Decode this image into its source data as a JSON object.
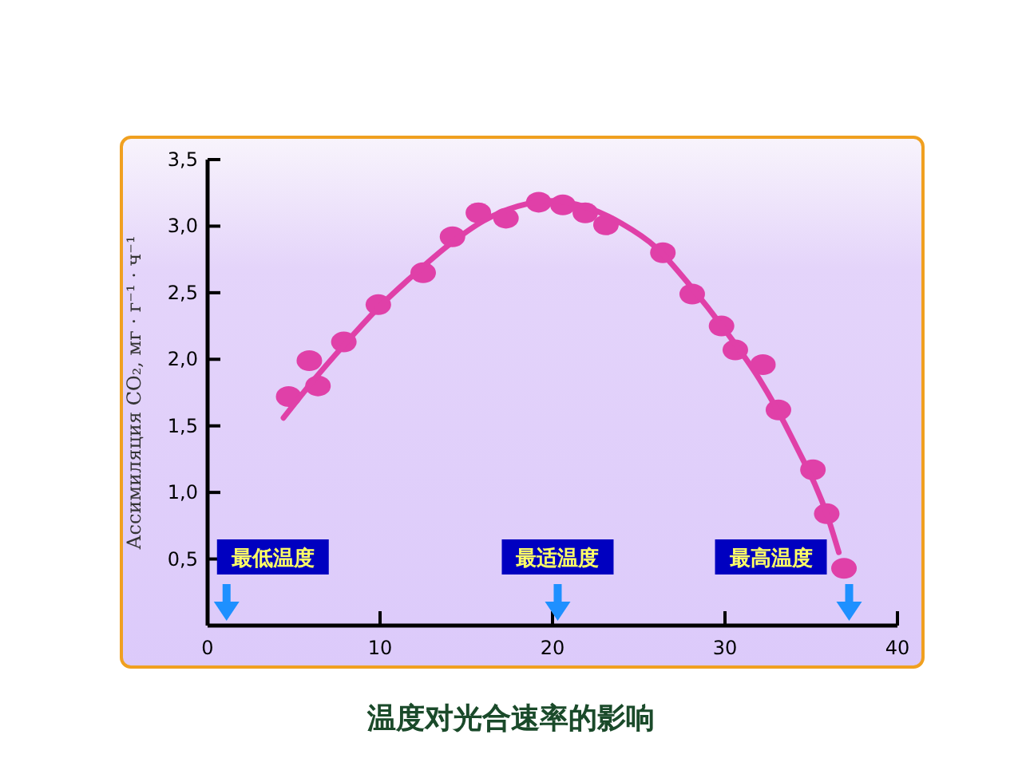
{
  "chart_data": {
    "type": "scatter",
    "title": "温度对光合速率的影响",
    "ylabel": "Ассимиляция CO₂, мг · г⁻¹ · ч⁻¹",
    "xlim": [
      0,
      40
    ],
    "xticks": [
      0,
      10,
      20,
      30,
      40
    ],
    "ylim": [
      0,
      3.5
    ],
    "yticks": [
      {
        "value": 0.5,
        "label": "0,5"
      },
      {
        "value": 1,
        "label": "1,0"
      },
      {
        "value": 1.5,
        "label": "1,5"
      },
      {
        "value": 2,
        "label": "2,0"
      },
      {
        "value": 2.5,
        "label": "2,5"
      },
      {
        "value": 3,
        "label": "3,0"
      },
      {
        "value": 3.5,
        "label": "3,5"
      }
    ],
    "grid": false,
    "series": [
      {
        "marker": "circle",
        "color": "#e040a8",
        "x": [
          4.7,
          5.9,
          6.4,
          7.9,
          9.9,
          12.5,
          14.2,
          15.7,
          17.3,
          19.2,
          20.6,
          21.9,
          23.1,
          26.4,
          28.1,
          29.8,
          30.6,
          32.2,
          33.1,
          35.1,
          35.9,
          36.9
        ],
        "values": [
          1.72,
          1.99,
          1.8,
          2.13,
          2.41,
          2.65,
          2.92,
          3.1,
          3.06,
          3.18,
          3.16,
          3.1,
          3.01,
          2.8,
          2.49,
          2.25,
          2.07,
          1.96,
          1.62,
          1.17,
          0.84,
          0.43
        ]
      },
      {
        "type": "line",
        "marker": "none",
        "color": "#e040a8",
        "x": [
          4.4,
          6,
          8,
          10,
          12,
          14,
          16,
          18,
          20,
          22,
          24,
          26,
          28,
          30,
          32,
          34,
          36,
          36.6
        ],
        "values": [
          1.56,
          1.82,
          2.12,
          2.4,
          2.64,
          2.86,
          3.04,
          3.15,
          3.19,
          3.14,
          3.02,
          2.84,
          2.55,
          2.22,
          1.85,
          1.38,
          0.8,
          0.55
        ]
      }
    ],
    "annotations": [
      "最低温度",
      "最适温度",
      "最高温度"
    ]
  }
}
